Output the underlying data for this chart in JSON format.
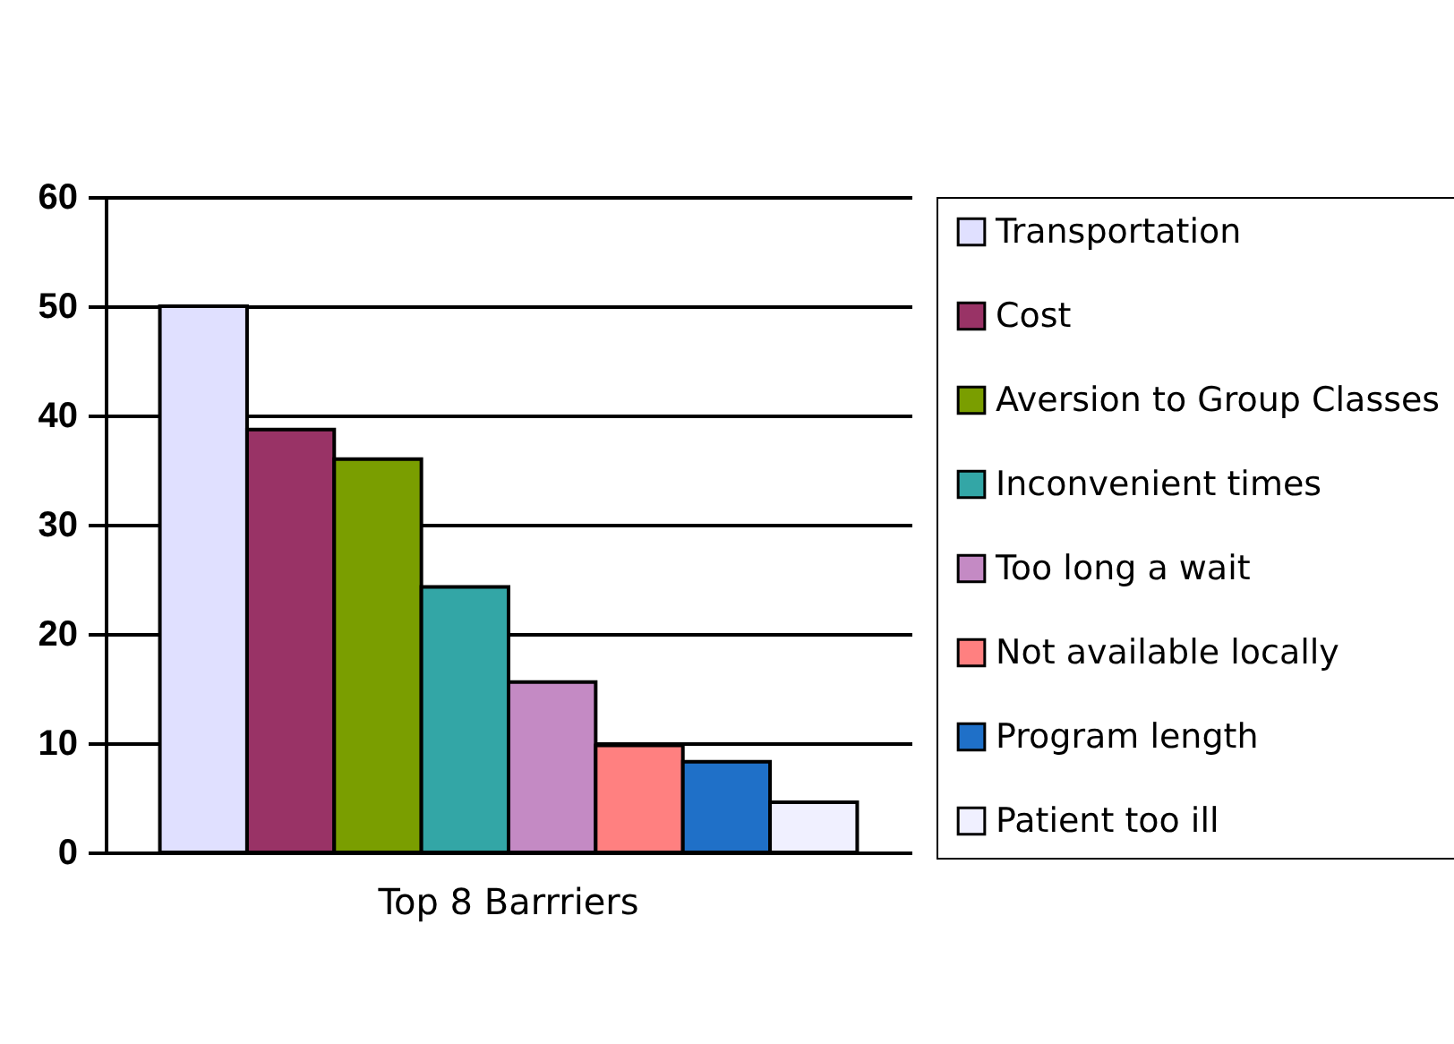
{
  "chart_data": {
    "type": "bar",
    "categories": [
      "Top 8 Barrriers"
    ],
    "series": [
      {
        "name": "Transportation",
        "color": "#e0e0ff",
        "values": [
          50
        ]
      },
      {
        "name": "Cost",
        "color": "#993366",
        "values": [
          38.7
        ]
      },
      {
        "name": "Aversion to Group Classes",
        "color": "#7a9e00",
        "values": [
          36
        ]
      },
      {
        "name": "Inconvenient times",
        "color": "#33a6a6",
        "values": [
          24.3
        ]
      },
      {
        "name": "Too long a wait",
        "color": "#c48ac4",
        "values": [
          15.6
        ]
      },
      {
        "name": "Not available locally",
        "color": "#ff8080",
        "values": [
          9.8
        ]
      },
      {
        "name": "Program length",
        "color": "#1f70c8",
        "values": [
          8.3
        ]
      },
      {
        "name": "Patient too ill",
        "color": "#f0f0ff",
        "values": [
          4.6
        ]
      }
    ],
    "ylim": [
      0,
      60
    ],
    "yticks": [
      0,
      10,
      20,
      30,
      40,
      50,
      60
    ],
    "grid": "y",
    "legend": "right"
  }
}
